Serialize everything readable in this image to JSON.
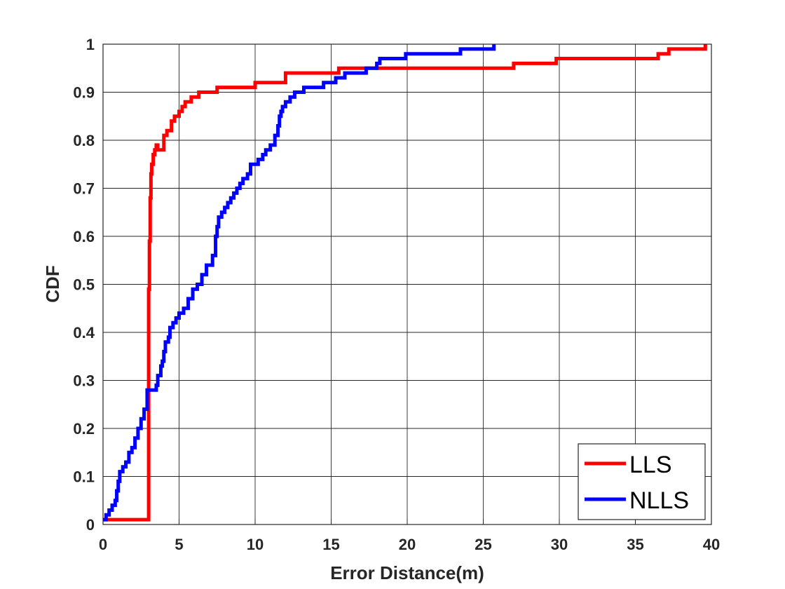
{
  "chart_data": {
    "type": "line",
    "title": "",
    "xlabel": "Error Distance(m)",
    "ylabel": "CDF",
    "xlim": [
      0,
      40
    ],
    "ylim": [
      0,
      1
    ],
    "xticks": [
      0,
      5,
      10,
      15,
      20,
      25,
      30,
      35,
      40
    ],
    "xtick_labels": [
      "0",
      "5",
      "10",
      "15",
      "20",
      "25",
      "30",
      "35",
      "40"
    ],
    "yticks": [
      0,
      0.1,
      0.2,
      0.3,
      0.4,
      0.5,
      0.6,
      0.7,
      0.8,
      0.9,
      1
    ],
    "ytick_labels": [
      "0",
      "0.1",
      "0.2",
      "0.3",
      "0.4",
      "0.5",
      "0.6",
      "0.7",
      "0.8",
      "0.9",
      "1"
    ],
    "grid": true,
    "legend_position": "bottom-right",
    "series": [
      {
        "name": "LLS",
        "color": "#ff0000",
        "step": true,
        "x": [
          0,
          3.0,
          3.0,
          3.05,
          3.1,
          3.15,
          3.2,
          3.3,
          3.4,
          3.5,
          3.6,
          4.0,
          4.2,
          4.5,
          4.7,
          5.0,
          5.2,
          5.4,
          5.8,
          6.3,
          7.5,
          10.0,
          12.0,
          15.5,
          17.3,
          27.0,
          29.8,
          36.5,
          37.2,
          39.6
        ],
        "y": [
          0.01,
          0.15,
          0.49,
          0.59,
          0.68,
          0.73,
          0.75,
          0.77,
          0.78,
          0.79,
          0.78,
          0.81,
          0.82,
          0.84,
          0.85,
          0.86,
          0.87,
          0.88,
          0.89,
          0.9,
          0.91,
          0.92,
          0.94,
          0.95,
          0.95,
          0.96,
          0.97,
          0.98,
          0.99,
          1.0
        ]
      },
      {
        "name": "NLLS",
        "color": "#0000ff",
        "step": true,
        "x": [
          0,
          0.2,
          0.4,
          0.6,
          0.8,
          0.9,
          1.0,
          1.1,
          1.3,
          1.5,
          1.7,
          1.9,
          2.1,
          2.3,
          2.5,
          2.7,
          2.9,
          3.3,
          3.5,
          3.6,
          3.8,
          3.9,
          4.0,
          4.1,
          4.3,
          4.4,
          4.6,
          4.8,
          5.0,
          5.3,
          5.6,
          5.9,
          6.2,
          6.5,
          6.8,
          7.2,
          7.4,
          7.5,
          7.6,
          7.8,
          8.0,
          8.2,
          8.4,
          8.6,
          8.8,
          9.0,
          9.2,
          9.5,
          9.7,
          10.2,
          10.5,
          10.7,
          11.0,
          11.3,
          11.5,
          11.6,
          11.7,
          11.8,
          12.0,
          12.3,
          12.6,
          13.2,
          14.5,
          15.3,
          15.9,
          17.3,
          18.0,
          18.2,
          19.9,
          23.5,
          25.7
        ],
        "y": [
          0.01,
          0.02,
          0.03,
          0.04,
          0.05,
          0.07,
          0.09,
          0.11,
          0.12,
          0.13,
          0.15,
          0.16,
          0.18,
          0.2,
          0.22,
          0.24,
          0.28,
          0.28,
          0.29,
          0.31,
          0.33,
          0.34,
          0.36,
          0.38,
          0.39,
          0.41,
          0.42,
          0.43,
          0.44,
          0.45,
          0.47,
          0.49,
          0.5,
          0.52,
          0.54,
          0.56,
          0.6,
          0.62,
          0.64,
          0.65,
          0.66,
          0.67,
          0.68,
          0.69,
          0.7,
          0.71,
          0.72,
          0.73,
          0.75,
          0.76,
          0.77,
          0.78,
          0.79,
          0.81,
          0.83,
          0.85,
          0.86,
          0.87,
          0.88,
          0.89,
          0.9,
          0.91,
          0.92,
          0.93,
          0.94,
          0.95,
          0.96,
          0.97,
          0.98,
          0.99,
          1.0
        ]
      }
    ]
  }
}
